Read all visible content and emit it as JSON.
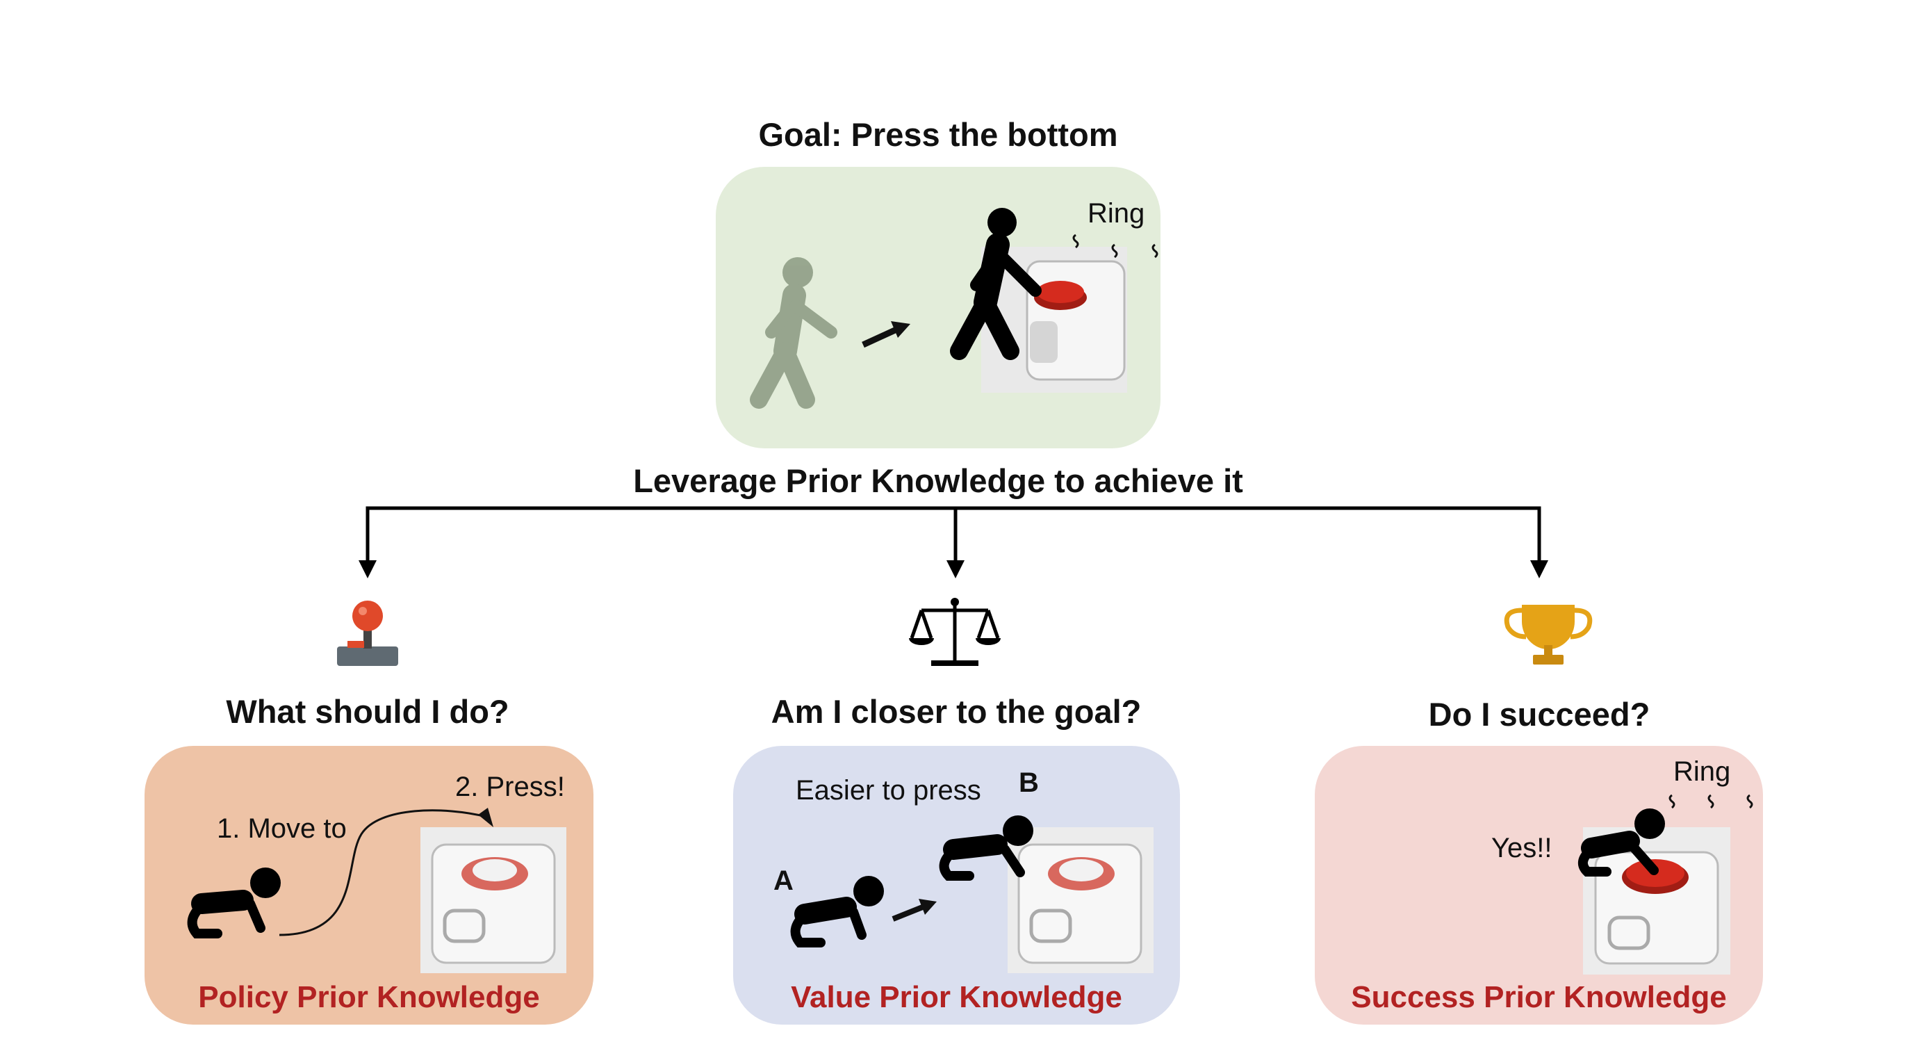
{
  "goal": {
    "title": "Goal: Press the bottom",
    "sound_label": "Ring",
    "caption": "Leverage Prior Knowledge to achieve it"
  },
  "branches": {
    "policy": {
      "icon": "joystick-icon",
      "question": "What should I do?",
      "step1": "1. Move to",
      "step2": "2. Press!",
      "title": "Policy Prior Knowledge"
    },
    "value": {
      "icon": "balance-scale-icon",
      "question": "Am I closer to the goal?",
      "note": "Easier to press",
      "label_a": "A",
      "label_b": "B",
      "title": "Value Prior Knowledge"
    },
    "success": {
      "icon": "trophy-icon",
      "question": "Do I succeed?",
      "sound_label": "Ring",
      "exclaim": "Yes!!",
      "title": "Success Prior Knowledge"
    }
  },
  "colors": {
    "goal_panel": "#e3edda",
    "policy_panel": "#eec3a6",
    "value_panel": "#dadfef",
    "success_panel": "#f4d7d3",
    "title_red": "#b22222",
    "button_red": "#d52b1e"
  }
}
